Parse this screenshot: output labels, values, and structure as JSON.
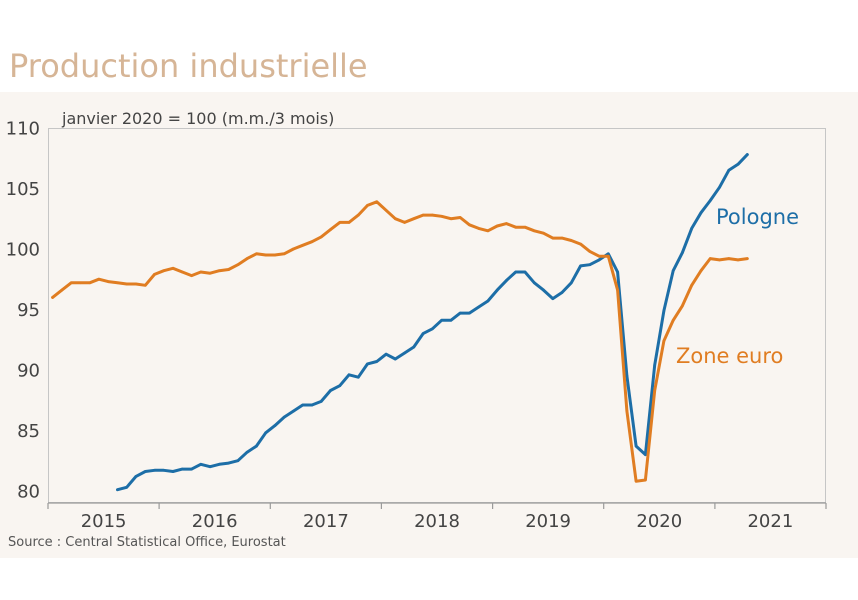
{
  "colors": {
    "title": "#d6b596",
    "panel_background": "#f9f5f1",
    "tick_text": "#444444"
  },
  "chart_data": {
    "type": "line",
    "title": "Production industrielle",
    "subtitle": "janvier 2020 = 100 (m.m./3 mois)",
    "source": "Source : Central Statistical Office, Eurostat",
    "xlabel": "",
    "ylabel": "",
    "grid": false,
    "xlim": [
      "2015-01",
      "2021-12"
    ],
    "xticks": [
      "2015",
      "2016",
      "2017",
      "2018",
      "2019",
      "2020",
      "2021"
    ],
    "ylim": [
      79,
      110
    ],
    "yticks": [
      80,
      85,
      90,
      95,
      100,
      105,
      110
    ],
    "x": [
      "2015-01",
      "2015-02",
      "2015-03",
      "2015-04",
      "2015-05",
      "2015-06",
      "2015-07",
      "2015-08",
      "2015-09",
      "2015-10",
      "2015-11",
      "2015-12",
      "2016-01",
      "2016-02",
      "2016-03",
      "2016-04",
      "2016-05",
      "2016-06",
      "2016-07",
      "2016-08",
      "2016-09",
      "2016-10",
      "2016-11",
      "2016-12",
      "2017-01",
      "2017-02",
      "2017-03",
      "2017-04",
      "2017-05",
      "2017-06",
      "2017-07",
      "2017-08",
      "2017-09",
      "2017-10",
      "2017-11",
      "2017-12",
      "2018-01",
      "2018-02",
      "2018-03",
      "2018-04",
      "2018-05",
      "2018-06",
      "2018-07",
      "2018-08",
      "2018-09",
      "2018-10",
      "2018-11",
      "2018-12",
      "2019-01",
      "2019-02",
      "2019-03",
      "2019-04",
      "2019-05",
      "2019-06",
      "2019-07",
      "2019-08",
      "2019-09",
      "2019-10",
      "2019-11",
      "2019-12",
      "2020-01",
      "2020-02",
      "2020-03",
      "2020-04",
      "2020-05",
      "2020-06",
      "2020-07",
      "2020-08",
      "2020-09",
      "2020-10",
      "2020-11",
      "2020-12",
      "2021-01",
      "2021-02",
      "2021-03",
      "2021-04"
    ],
    "series": [
      {
        "name": "Pologne",
        "color": "#1d6ea7",
        "values": [
          null,
          null,
          null,
          null,
          null,
          null,
          null,
          80.1,
          80.3,
          81.2,
          81.6,
          81.7,
          81.7,
          81.6,
          81.8,
          81.8,
          82.2,
          82.0,
          82.2,
          82.3,
          82.5,
          83.2,
          83.7,
          84.8,
          85.4,
          86.1,
          86.6,
          87.1,
          87.1,
          87.4,
          88.3,
          88.7,
          89.6,
          89.4,
          90.5,
          90.7,
          91.3,
          90.9,
          91.4,
          91.9,
          93.0,
          93.4,
          94.1,
          94.1,
          94.7,
          94.7,
          95.2,
          95.7,
          96.6,
          97.4,
          98.1,
          98.1,
          97.2,
          96.6,
          95.9,
          96.4,
          97.2,
          98.6,
          98.7,
          99.1,
          99.6,
          98.1,
          89.5,
          83.7,
          83.0,
          90.4,
          94.9,
          98.2,
          99.7,
          101.7,
          103.0,
          104.0,
          105.1,
          106.5,
          107.0,
          107.8
        ]
      },
      {
        "name": "Zone euro",
        "color": "#e07d22",
        "values": [
          96.0,
          96.6,
          97.2,
          97.2,
          97.2,
          97.5,
          97.3,
          97.2,
          97.1,
          97.1,
          97.0,
          97.9,
          98.2,
          98.4,
          98.1,
          97.8,
          98.1,
          98.0,
          98.2,
          98.3,
          98.7,
          99.2,
          99.6,
          99.5,
          99.5,
          99.6,
          100.0,
          100.3,
          100.6,
          101.0,
          101.6,
          102.2,
          102.2,
          102.8,
          103.6,
          103.9,
          103.2,
          102.5,
          102.2,
          102.5,
          102.8,
          102.8,
          102.7,
          102.5,
          102.6,
          102.0,
          101.7,
          101.5,
          101.9,
          102.1,
          101.8,
          101.8,
          101.5,
          101.3,
          100.9,
          100.9,
          100.7,
          100.4,
          99.8,
          99.4,
          99.4,
          96.6,
          86.6,
          80.8,
          80.9,
          88.3,
          92.4,
          94.1,
          95.3,
          97.0,
          98.2,
          99.2,
          99.1,
          99.2,
          99.1,
          99.2
        ]
      }
    ]
  }
}
